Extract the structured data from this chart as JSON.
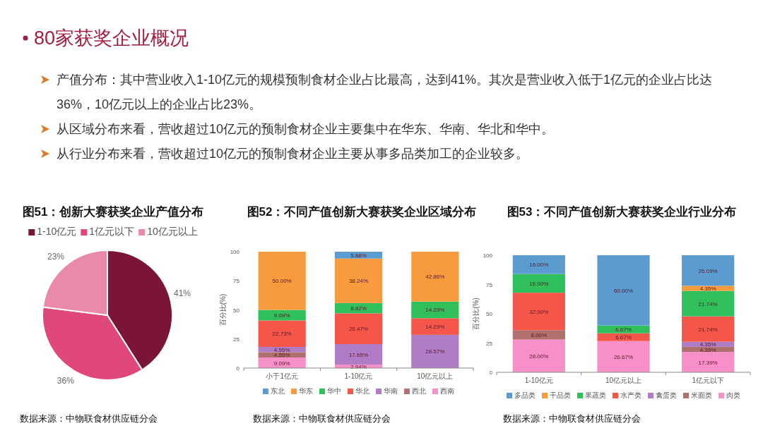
{
  "chart_data": [
    {
      "type": "other",
      "title": "80家获奖企业概况",
      "annotations": [
        "产值分布：其中营业收入1-10亿元的规模预制食材企业占比最高，达到41%。其次是营业收入低于1亿元的企业占比达36%，10亿元以上的企业占比23%。",
        "从区域分布来看，营收超过10亿元的预制食材企业主要集中在华东、华南、华北和华中。",
        "从行业分布来看，营收超过10亿元的预制食材企业主要从事多品类加工的企业较多。"
      ]
    },
    {
      "type": "pie",
      "title": "图51：创新大赛获奖企业产值分布",
      "categories": [
        "1-10亿元",
        "1亿元以下",
        "10亿元以上"
      ],
      "values": [
        41,
        36,
        23
      ],
      "value_labels": [
        "41%",
        "36%",
        "23%"
      ],
      "colors": [
        "#7a1535",
        "#e0487a",
        "#e88aa8"
      ],
      "legend": "top",
      "annotations": [
        "数据来源：中物联食材供应链分会"
      ]
    },
    {
      "type": "bar",
      "stacked": true,
      "title": "图52：不同产值创新大赛获奖企业区域分布",
      "ylabel": "百分比(%)",
      "categories": [
        "小于1亿元",
        "1-10亿元",
        "10亿元以上"
      ],
      "ylim": [
        0,
        100
      ],
      "yticks": [
        0,
        25,
        50,
        75,
        100
      ],
      "legend": "bottom",
      "annotations": [
        "数据来源：中物联食材供应链分会"
      ],
      "series": [
        {
          "name": "西南",
          "color": "#f78fc8",
          "values": [
            9.09,
            2.94,
            null
          ],
          "value_labels": [
            "9.09%",
            "2.94%",
            null
          ]
        },
        {
          "name": "西北",
          "color": "#b0706e",
          "values": [
            4.55,
            null,
            null
          ],
          "value_labels": [
            "4.55%",
            null,
            null
          ]
        },
        {
          "name": "华南",
          "color": "#b07cc6",
          "values": [
            4.55,
            17.65,
            28.57
          ],
          "value_labels": [
            "4.55%",
            "17.65%",
            "28.57%"
          ]
        },
        {
          "name": "华北",
          "color": "#f5564a",
          "values": [
            22.73,
            26.47,
            14.29
          ],
          "value_labels": [
            "22.73%",
            "26.47%",
            "14.29%"
          ]
        },
        {
          "name": "华中",
          "color": "#30bf5a",
          "values": [
            9.09,
            8.82,
            14.29
          ],
          "value_labels": [
            "9.09%",
            "8.82%",
            "14.29%"
          ]
        },
        {
          "name": "华东",
          "color": "#f89a3e",
          "values": [
            50.0,
            38.24,
            42.86
          ],
          "value_labels": [
            "50.00%",
            "38.24%",
            "42.86%"
          ]
        },
        {
          "name": "东北",
          "color": "#5b9bd0",
          "values": [
            null,
            5.88,
            null
          ],
          "value_labels": [
            null,
            "5.88%",
            null
          ]
        }
      ]
    },
    {
      "type": "bar",
      "stacked": true,
      "title": "图53：不同产值创新大赛获奖企业行业分布",
      "ylabel": "百分比(%)",
      "categories": [
        "1-10亿元",
        "10亿元以上",
        "1亿元以下"
      ],
      "ylim": [
        0,
        100
      ],
      "yticks": [
        0,
        25,
        50,
        75,
        100
      ],
      "legend": "bottom",
      "annotations": [
        "数据来源：中物联食材供应链分会"
      ],
      "series": [
        {
          "name": "肉类",
          "color": "#f78fc8",
          "values": [
            28.0,
            26.67,
            17.39
          ],
          "value_labels": [
            "28.00%",
            "26.67%",
            "17.39%"
          ]
        },
        {
          "name": "米面类",
          "color": "#b0706e",
          "values": [
            8.0,
            null,
            4.35
          ],
          "value_labels": [
            "8.00%",
            null,
            "4.35%"
          ]
        },
        {
          "name": "禽蛋类",
          "color": "#b07cc6",
          "values": [
            null,
            null,
            4.35
          ],
          "value_labels": [
            null,
            null,
            "4.35%"
          ]
        },
        {
          "name": "水产类",
          "color": "#f5564a",
          "values": [
            32.0,
            6.67,
            21.74
          ],
          "value_labels": [
            "32.00%",
            "6.67%",
            "21.74%"
          ]
        },
        {
          "name": "果蔬类",
          "color": "#30bf5a",
          "values": [
            16.0,
            6.67,
            21.74
          ],
          "value_labels": [
            "16.00%",
            "6.67%",
            "21.74%"
          ]
        },
        {
          "name": "干品类",
          "color": "#f89a3e",
          "values": [
            null,
            null,
            4.35
          ],
          "value_labels": [
            null,
            null,
            "4.35%"
          ]
        },
        {
          "name": "多品类",
          "color": "#5b9bd0",
          "values": [
            16.0,
            60.0,
            26.09
          ],
          "value_labels": [
            "16.00%",
            "60.00%",
            "26.09%"
          ]
        }
      ]
    }
  ]
}
